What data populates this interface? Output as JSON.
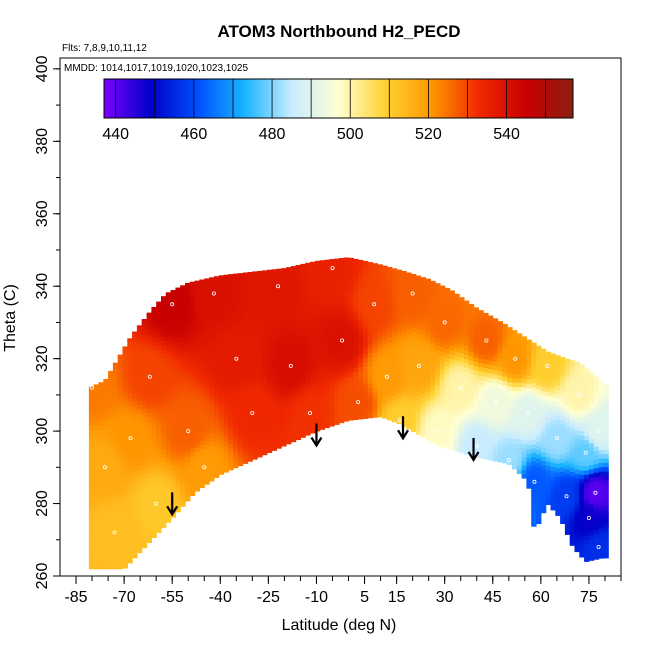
{
  "chart_data": {
    "type": "heatmap",
    "title": "ATOM3 Northbound H2_PECD",
    "flights_note": "Flts: 7,8,9,10,11,12",
    "dates_note": "MMDD: 1014,1017,1019,1020,1023,1025",
    "xlabel": "Latitude (deg N)",
    "ylabel": "Theta (C)",
    "xlim": [
      -90,
      85
    ],
    "ylim": [
      260,
      403
    ],
    "x_ticks": [
      -85,
      -70,
      -55,
      -40,
      -25,
      -10,
      5,
      15,
      30,
      45,
      60,
      75
    ],
    "y_ticks": [
      260,
      280,
      300,
      320,
      340,
      360,
      380,
      400
    ],
    "colorbar": {
      "range": [
        437,
        557
      ],
      "ticks": [
        440,
        460,
        480,
        500,
        520,
        540
      ],
      "colors": [
        "#7a00ff",
        "#0000c8",
        "#0050ff",
        "#19b4ff",
        "#c8ecff",
        "#ffffd2",
        "#ffd232",
        "#ff9600",
        "#f02800",
        "#c80000",
        "#8c1e14"
      ]
    },
    "tropopause_arrows": [
      {
        "lat": -55,
        "theta": 283
      },
      {
        "lat": -10,
        "theta": 302
      },
      {
        "lat": 17,
        "theta": 304
      },
      {
        "lat": 39,
        "theta": 298
      }
    ],
    "field_anchors": [
      {
        "lat": -80,
        "theta": 312,
        "value": 524
      },
      {
        "lat": -76,
        "theta": 290,
        "value": 517
      },
      {
        "lat": -73,
        "theta": 272,
        "value": 513
      },
      {
        "lat": -68,
        "theta": 298,
        "value": 521
      },
      {
        "lat": -62,
        "theta": 315,
        "value": 530
      },
      {
        "lat": -60,
        "theta": 280,
        "value": 511
      },
      {
        "lat": -55,
        "theta": 335,
        "value": 545
      },
      {
        "lat": -50,
        "theta": 300,
        "value": 527
      },
      {
        "lat": -45,
        "theta": 290,
        "value": 520
      },
      {
        "lat": -42,
        "theta": 338,
        "value": 540
      },
      {
        "lat": -35,
        "theta": 320,
        "value": 537
      },
      {
        "lat": -30,
        "theta": 305,
        "value": 533
      },
      {
        "lat": -22,
        "theta": 340,
        "value": 538
      },
      {
        "lat": -18,
        "theta": 318,
        "value": 541
      },
      {
        "lat": -12,
        "theta": 305,
        "value": 532
      },
      {
        "lat": -5,
        "theta": 345,
        "value": 535
      },
      {
        "lat": -2,
        "theta": 325,
        "value": 540
      },
      {
        "lat": 3,
        "theta": 308,
        "value": 529
      },
      {
        "lat": 8,
        "theta": 335,
        "value": 530
      },
      {
        "lat": 12,
        "theta": 315,
        "value": 520
      },
      {
        "lat": 16,
        "theta": 303,
        "value": 510
      },
      {
        "lat": 20,
        "theta": 338,
        "value": 527
      },
      {
        "lat": 22,
        "theta": 318,
        "value": 518
      },
      {
        "lat": 28,
        "theta": 300,
        "value": 498
      },
      {
        "lat": 30,
        "theta": 330,
        "value": 526
      },
      {
        "lat": 35,
        "theta": 312,
        "value": 500
      },
      {
        "lat": 40,
        "theta": 296,
        "value": 485
      },
      {
        "lat": 43,
        "theta": 325,
        "value": 527
      },
      {
        "lat": 46,
        "theta": 308,
        "value": 494
      },
      {
        "lat": 50,
        "theta": 292,
        "value": 482
      },
      {
        "lat": 52,
        "theta": 320,
        "value": 521
      },
      {
        "lat": 56,
        "theta": 305,
        "value": 490
      },
      {
        "lat": 58,
        "theta": 286,
        "value": 462
      },
      {
        "lat": 62,
        "theta": 318,
        "value": 510
      },
      {
        "lat": 65,
        "theta": 298,
        "value": 482
      },
      {
        "lat": 68,
        "theta": 282,
        "value": 458
      },
      {
        "lat": 72,
        "theta": 310,
        "value": 500
      },
      {
        "lat": 74,
        "theta": 294,
        "value": 478
      },
      {
        "lat": 75,
        "theta": 276,
        "value": 448
      },
      {
        "lat": 77,
        "theta": 283,
        "value": 440
      },
      {
        "lat": 78,
        "theta": 300,
        "value": 490
      },
      {
        "lat": 78,
        "theta": 268,
        "value": 456
      }
    ]
  }
}
